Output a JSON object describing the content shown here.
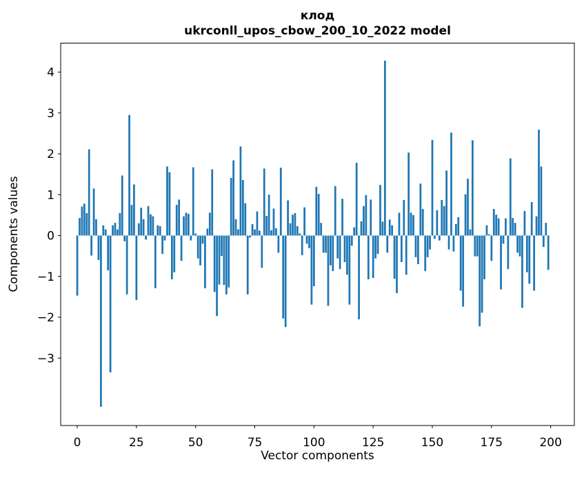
{
  "figure": {
    "title_line1": "клод",
    "title_line2": "ukrconll_upos_cbow_200_10_2022 model",
    "xlabel": "Vector components",
    "ylabel": "Components values",
    "bar_color": "#1f77b4",
    "text_color": "#000000",
    "background": "#ffffff"
  },
  "chart_data": {
    "type": "bar",
    "title": "клод\nukrconll_upos_cbow_200_10_2022 model",
    "xlabel": "Vector components",
    "ylabel": "Components values",
    "legend": "none",
    "grid": false,
    "bar_color": "#1f77b4",
    "n_components": 200,
    "xlim": [
      -7,
      210
    ],
    "ylim": [
      -4.65,
      4.71
    ],
    "x_ticks": [
      0,
      25,
      50,
      75,
      100,
      125,
      150,
      175,
      200
    ],
    "y_ticks": [
      -3,
      -2,
      -1,
      0,
      1,
      2,
      3,
      4
    ],
    "y_tick_labels": [
      "−3",
      "−2",
      "−1",
      "0",
      "1",
      "2",
      "3",
      "4"
    ],
    "values": [
      -1.47,
      0.43,
      0.71,
      0.78,
      0.55,
      2.11,
      -0.49,
      1.15,
      0.4,
      -0.6,
      -4.19,
      0.25,
      0.15,
      -0.85,
      -3.35,
      0.25,
      0.31,
      0.15,
      0.55,
      1.47,
      -0.14,
      -1.44,
      2.95,
      0.75,
      1.25,
      -1.58,
      0.3,
      0.68,
      0.4,
      -0.1,
      0.72,
      0.52,
      0.47,
      -1.29,
      0.25,
      0.23,
      -0.45,
      -0.12,
      1.69,
      1.55,
      -1.07,
      -0.9,
      0.75,
      0.88,
      -0.62,
      0.47,
      0.56,
      0.53,
      -0.12,
      1.67,
      0.05,
      -0.56,
      -0.73,
      -0.2,
      -1.29,
      0.17,
      0.56,
      1.62,
      -1.38,
      -1.97,
      -1.2,
      -0.5,
      -1.21,
      -1.44,
      -1.27,
      1.41,
      1.84,
      0.4,
      0.15,
      2.18,
      1.36,
      0.79,
      -1.44,
      -0.05,
      0.28,
      0.15,
      0.59,
      0.12,
      -0.79,
      1.64,
      0.48,
      1.0,
      0.13,
      0.66,
      0.18,
      -0.42,
      1.66,
      -2.03,
      -2.24,
      0.86,
      0.3,
      0.51,
      0.55,
      0.23,
      0.05,
      -0.48,
      0.69,
      -0.2,
      -0.31,
      -1.69,
      -1.24,
      1.19,
      1.02,
      0.31,
      -0.42,
      -0.42,
      -1.72,
      -0.73,
      -0.87,
      1.21,
      -0.56,
      -0.82,
      0.9,
      -0.65,
      -0.96,
      -1.69,
      -0.25,
      0.2,
      1.78,
      -2.05,
      0.35,
      0.72,
      0.99,
      -1.07,
      0.88,
      -1.04,
      -0.56,
      -0.45,
      1.24,
      0.34,
      4.28,
      -0.42,
      0.39,
      0.25,
      -1.06,
      -1.41,
      0.56,
      -0.65,
      0.87,
      -0.96,
      2.03,
      0.56,
      0.5,
      -0.53,
      -0.7,
      1.27,
      0.65,
      -0.87,
      -0.53,
      -0.34,
      2.34,
      -0.08,
      0.62,
      -0.12,
      0.87,
      0.72,
      1.59,
      -0.34,
      2.52,
      -0.39,
      0.28,
      0.45,
      -1.35,
      -1.74,
      1.01,
      1.39,
      0.15,
      2.33,
      -0.51,
      -0.51,
      -2.22,
      -1.89,
      -1.07,
      0.25,
      0.03,
      -0.62,
      0.65,
      0.51,
      0.42,
      -1.32,
      -0.2,
      0.42,
      -0.82,
      1.89,
      0.43,
      0.31,
      -0.42,
      -0.51,
      -1.77,
      0.6,
      -0.9,
      -1.18,
      0.82,
      -1.35,
      0.47,
      2.59,
      1.69,
      -0.28,
      0.31,
      -0.84
    ]
  }
}
